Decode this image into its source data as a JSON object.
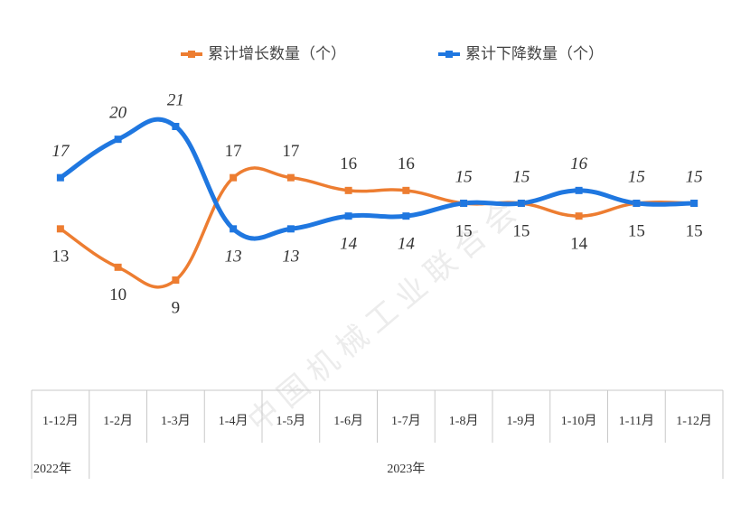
{
  "chart_data": {
    "type": "line",
    "watermark": "中 国 机 械 工 业 联 合 会",
    "categories": [
      "1-12月",
      "1-2月",
      "1-3月",
      "1-4月",
      "1-5月",
      "1-6月",
      "1-7月",
      "1-8月",
      "1-9月",
      "1-10月",
      "1-11月",
      "1-12月"
    ],
    "groups": [
      {
        "label": "2022年",
        "span": 1
      },
      {
        "label": "2023年",
        "span": 11
      }
    ],
    "series": [
      {
        "name": "累计增长数量（个）",
        "color": "#ed7d31",
        "values": [
          13,
          10,
          9,
          17,
          17,
          16,
          16,
          15,
          15,
          14,
          15,
          15
        ]
      },
      {
        "name": "累计下降数量（个）",
        "color": "#1f77e0",
        "values": [
          17,
          20,
          21,
          13,
          13,
          14,
          14,
          15,
          15,
          16,
          15,
          15
        ]
      }
    ],
    "grid": false
  }
}
